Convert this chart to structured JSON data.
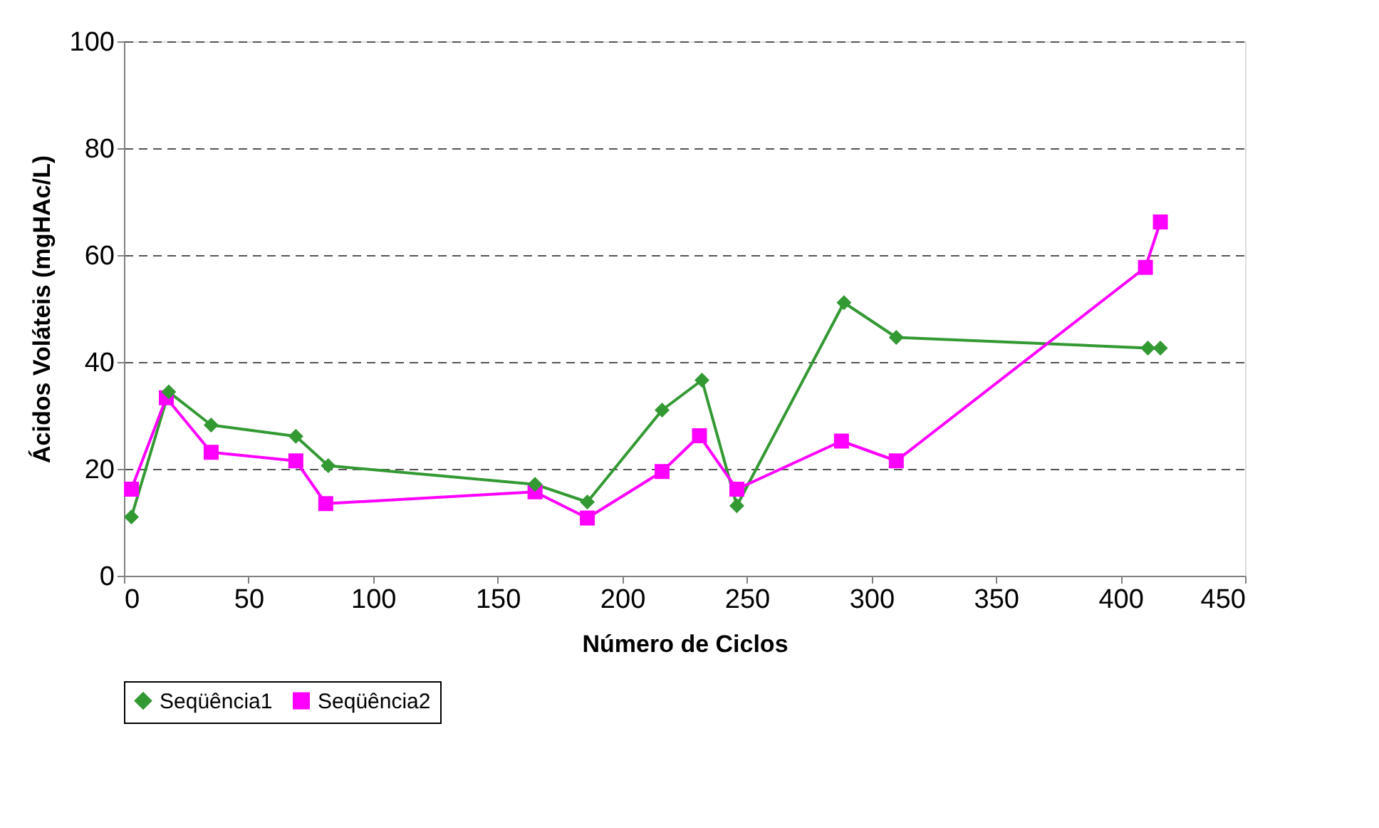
{
  "chart_data": {
    "type": "line",
    "xlabel": "Número de Ciclos",
    "ylabel": "Ácidos Voláteis (mgHAc/L)",
    "xlim": [
      0,
      450
    ],
    "xticks": [
      0,
      50,
      100,
      150,
      200,
      250,
      300,
      350,
      400,
      450
    ],
    "ylim": [
      0,
      100
    ],
    "yticks": [
      0,
      20,
      40,
      60,
      80,
      100
    ],
    "grid": "y",
    "legend": "bottom",
    "line_style": "solid",
    "series": [
      {
        "name": "Seqüência1",
        "color": "#339933",
        "marker": "diamond",
        "x": [
          3,
          18,
          35,
          69,
          82,
          165,
          186,
          216,
          232,
          246,
          289,
          310,
          411,
          416
        ],
        "values": [
          11,
          34.4,
          28.2,
          26.1,
          20.6,
          17.1,
          13.8,
          31,
          36.6,
          13.1,
          51.1,
          44.6,
          42.6,
          42.6
        ]
      },
      {
        "name": "Seqüência2",
        "color": "#ff00ff",
        "marker": "square",
        "x": [
          3,
          17,
          35,
          69,
          81,
          165,
          186,
          216,
          231,
          246,
          288,
          310,
          410,
          416
        ],
        "values": [
          16.2,
          33.3,
          23.1,
          21.5,
          13.5,
          15.7,
          10.8,
          19.5,
          26.2,
          16.2,
          25.2,
          21.5,
          57.7,
          66.2
        ]
      }
    ]
  }
}
